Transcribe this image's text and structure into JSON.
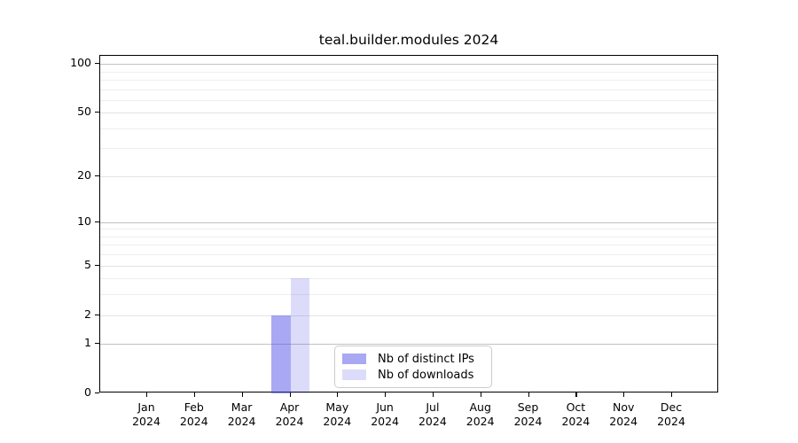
{
  "chart_data": {
    "type": "bar",
    "title": "teal.builder.modules 2024",
    "categories": [
      "Jan",
      "Feb",
      "Mar",
      "Apr",
      "May",
      "Jun",
      "Jul",
      "Aug",
      "Sep",
      "Oct",
      "Nov",
      "Dec"
    ],
    "x_year_label": "2024",
    "series": [
      {
        "name": "Nb of distinct IPs",
        "fill": "rgba(70,70,230,0.47)",
        "swatch_hex": "#a8a8f0",
        "values": [
          0,
          0,
          0,
          2,
          0,
          0,
          0,
          0,
          0,
          0,
          0,
          0
        ]
      },
      {
        "name": "Nb of downloads",
        "fill": "rgba(70,70,230,0.19)",
        "swatch_hex": "#dcdcf8",
        "values": [
          0,
          0,
          0,
          4,
          0,
          0,
          0,
          0,
          0,
          0,
          0,
          0
        ]
      }
    ],
    "y_axis": {
      "scale": "log1p",
      "max": 112,
      "ticks": [
        0,
        1,
        2,
        5,
        10,
        20,
        50,
        100
      ],
      "major_gridlines": [
        1,
        10,
        100
      ],
      "labeled_gridlines": [
        2,
        5,
        20,
        50
      ],
      "minor_gridlines": [
        3,
        4,
        6,
        7,
        8,
        9,
        30,
        40,
        60,
        70,
        80,
        90
      ]
    },
    "legend": {
      "position": "lower-center",
      "entries": [
        "Nb of distinct IPs",
        "Nb of downloads"
      ]
    },
    "grid": "horizontal-only",
    "background": "#ffffff"
  }
}
